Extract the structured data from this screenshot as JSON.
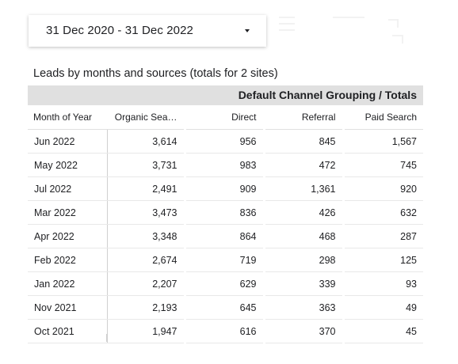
{
  "date_range": {
    "label": "31 Dec 2020 - 31 Dec 2022",
    "dropdown_icon": "caret-down-icon"
  },
  "table": {
    "title": "Leads by months and sources (totals for 2 sites)",
    "group_header": "Default Channel Grouping / Totals",
    "columns": [
      "Month of Year",
      "Organic Sea…",
      "Direct",
      "Referral",
      "Paid Search"
    ],
    "rows": [
      [
        "Jun 2022",
        "3,614",
        "956",
        "845",
        "1,567"
      ],
      [
        "May 2022",
        "3,731",
        "983",
        "472",
        "745"
      ],
      [
        "Jul 2022",
        "2,491",
        "909",
        "1,361",
        "920"
      ],
      [
        "Mar 2022",
        "3,473",
        "836",
        "426",
        "632"
      ],
      [
        "Apr 2022",
        "3,348",
        "864",
        "468",
        "287"
      ],
      [
        "Feb 2022",
        "2,674",
        "719",
        "298",
        "125"
      ],
      [
        "Jan 2022",
        "2,207",
        "629",
        "339",
        "93"
      ],
      [
        "Nov 2021",
        "2,193",
        "645",
        "363",
        "49"
      ],
      [
        "Oct 2021",
        "1,947",
        "616",
        "370",
        "45"
      ]
    ]
  },
  "colors": {
    "header_bg": "#e0e0e0",
    "text": "#202124",
    "divider": "#e8e8e8"
  }
}
